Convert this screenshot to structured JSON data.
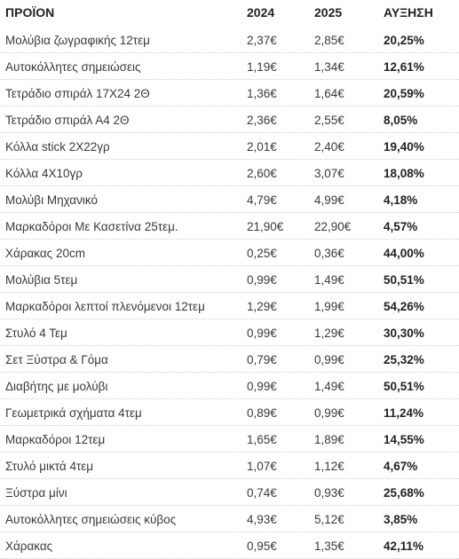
{
  "table": {
    "headers": {
      "product": "ΠΡΟΪΟΝ",
      "year_2024": "2024",
      "year_2025": "2025",
      "increase": "ΑΥΞΗΣΗ"
    },
    "rows": [
      {
        "product": "Μολύβια ζωγραφικής 12τεμ",
        "p2024": "2,37€",
        "p2025": "2,85€",
        "increase": "20,25%"
      },
      {
        "product": "Αυτοκόλλητες σημειώσεις",
        "p2024": "1,19€",
        "p2025": "1,34€",
        "increase": "12,61%"
      },
      {
        "product": "Τετράδιο σπιράλ 17Χ24 2Θ",
        "p2024": "1,36€",
        "p2025": "1,64€",
        "increase": "20,59%"
      },
      {
        "product": "Τετράδιο σπιράλ Α4 2Θ",
        "p2024": "2,36€",
        "p2025": "2,55€",
        "increase": "8,05%"
      },
      {
        "product": "Κόλλα stick 2X22γρ",
        "p2024": "2,01€",
        "p2025": "2,40€",
        "increase": "19,40%"
      },
      {
        "product": "Κόλλα 4Χ10γρ",
        "p2024": "2,60€",
        "p2025": "3,07€",
        "increase": "18,08%"
      },
      {
        "product": "Μολύβι Μηχανικό",
        "p2024": "4,79€",
        "p2025": "4,99€",
        "increase": "4,18%"
      },
      {
        "product": "Μαρκαδόροι Με Κασετίνα 25τεμ.",
        "p2024": "21,90€",
        "p2025": "22,90€",
        "increase": "4,57%"
      },
      {
        "product": "Χάρακας 20cm",
        "p2024": "0,25€",
        "p2025": "0,36€",
        "increase": "44,00%"
      },
      {
        "product": "Μολύβια 5τεμ",
        "p2024": "0,99€",
        "p2025": "1,49€",
        "increase": "50,51%"
      },
      {
        "product": "Μαρκαδόροι λεπτοί πλενόμενοι 12τεμ",
        "p2024": "1,29€",
        "p2025": "1,99€",
        "increase": "54,26%"
      },
      {
        "product": "Στυλό 4 Τεμ",
        "p2024": "0,99€",
        "p2025": "1,29€",
        "increase": "30,30%"
      },
      {
        "product": "Σετ Ξύστρα & Γόμα",
        "p2024": "0,79€",
        "p2025": "0,99€",
        "increase": "25,32%"
      },
      {
        "product": "Διαβήτης με μολύβι",
        "p2024": "0,99€",
        "p2025": "1,49€",
        "increase": "50,51%"
      },
      {
        "product": "Γεωμετρικά σχήματα  4τεμ",
        "p2024": "0,89€",
        "p2025": "0,99€",
        "increase": "11,24%"
      },
      {
        "product": "Μαρκαδόροι 12τεμ",
        "p2024": "1,65€",
        "p2025": "1,89€",
        "increase": "14,55%"
      },
      {
        "product": "Στυλό μικτά 4τεμ",
        "p2024": "1,07€",
        "p2025": "1,12€",
        "increase": "4,67%"
      },
      {
        "product": "Ξύστρα μίνι",
        "p2024": "0,74€",
        "p2025": "0,93€",
        "increase": "25,68%"
      },
      {
        "product": "Αυτοκόλλητες σημειώσεις κύβος",
        "p2024": "4,93€",
        "p2025": "5,12€",
        "increase": "3,85%"
      },
      {
        "product": "Χάρακας",
        "p2024": "0,95€",
        "p2025": "1,35€",
        "increase": "42,11%"
      }
    ]
  }
}
